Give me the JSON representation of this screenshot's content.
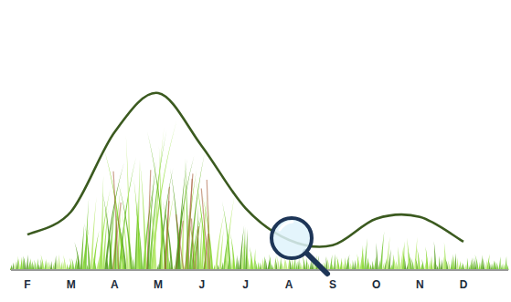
{
  "chart_data": {
    "type": "line",
    "categories": [
      "F",
      "M",
      "A",
      "M",
      "J",
      "J",
      "A",
      "S",
      "O",
      "N",
      "D"
    ],
    "values": [
      20,
      33,
      78,
      100,
      70,
      35,
      17,
      14,
      29,
      30,
      16
    ],
    "color": "#3b5a1f",
    "ylim": [
      0,
      100
    ],
    "tick_labels": "x"
  }
}
